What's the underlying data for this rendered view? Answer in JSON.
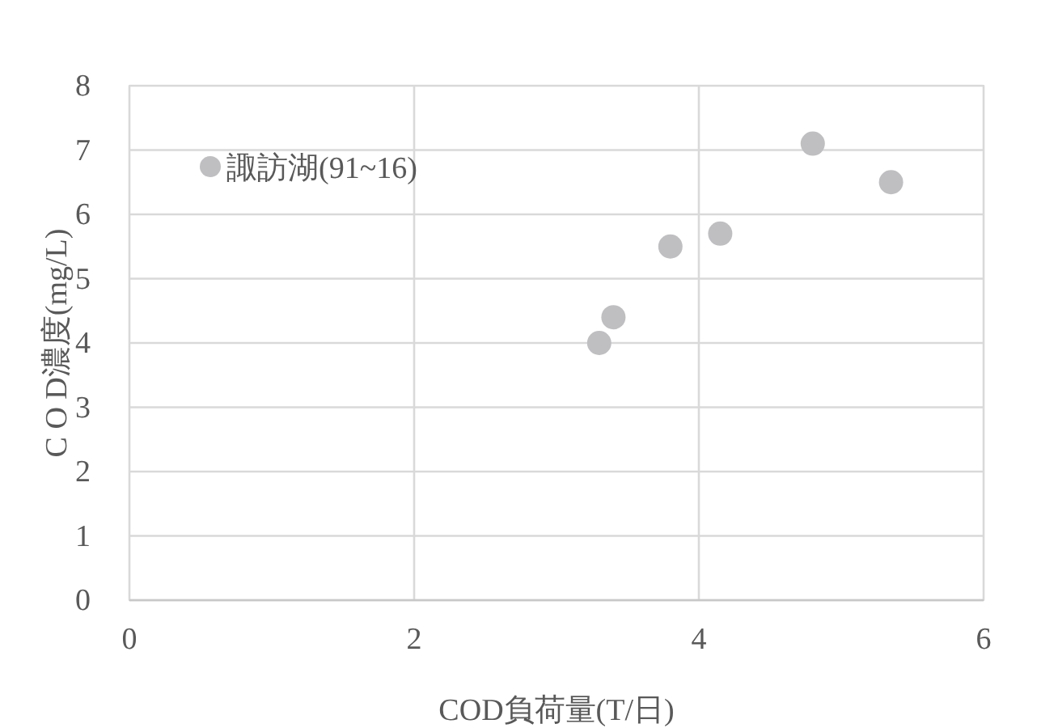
{
  "chart_data": {
    "type": "scatter",
    "xlabel": "COD負荷量(T/日)",
    "ylabel": "C O D濃度(mg/L)",
    "series": [
      {
        "name": "諏訪湖(91~16)",
        "color": "#bfbfc2",
        "x": [
          3.3,
          3.4,
          3.8,
          4.15,
          4.8,
          5.35
        ],
        "values": [
          4.0,
          4.4,
          5.5,
          5.7,
          7.1,
          6.5
        ]
      }
    ],
    "xlim": [
      0,
      6
    ],
    "xticks": [
      0,
      2,
      4,
      6
    ],
    "ylim": [
      0,
      8
    ],
    "yticks": [
      0,
      1,
      2,
      3,
      4,
      5,
      6,
      7,
      8
    ],
    "grid": true,
    "legend": "top left",
    "marker": "circle"
  }
}
